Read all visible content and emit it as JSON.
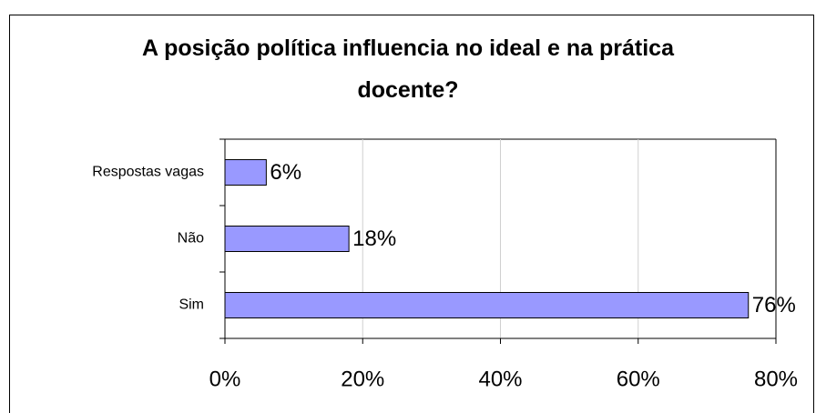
{
  "chart_data": {
    "type": "hbar",
    "title": "A posição política influencia no ideal e na prática docente?",
    "categories": [
      "Respostas vagas",
      "Não",
      "Sim"
    ],
    "values": [
      6,
      18,
      76
    ],
    "value_labels": [
      "6%",
      "18%",
      "76%"
    ],
    "color": "#9999ff",
    "xlim": [
      0,
      80
    ],
    "xticks": [
      {
        "value": 0,
        "label": "0%"
      },
      {
        "value": 20,
        "label": "20%"
      },
      {
        "value": 40,
        "label": "40%"
      },
      {
        "value": 60,
        "label": "60%"
      },
      {
        "value": 80,
        "label": "80%"
      }
    ],
    "grid": true
  }
}
